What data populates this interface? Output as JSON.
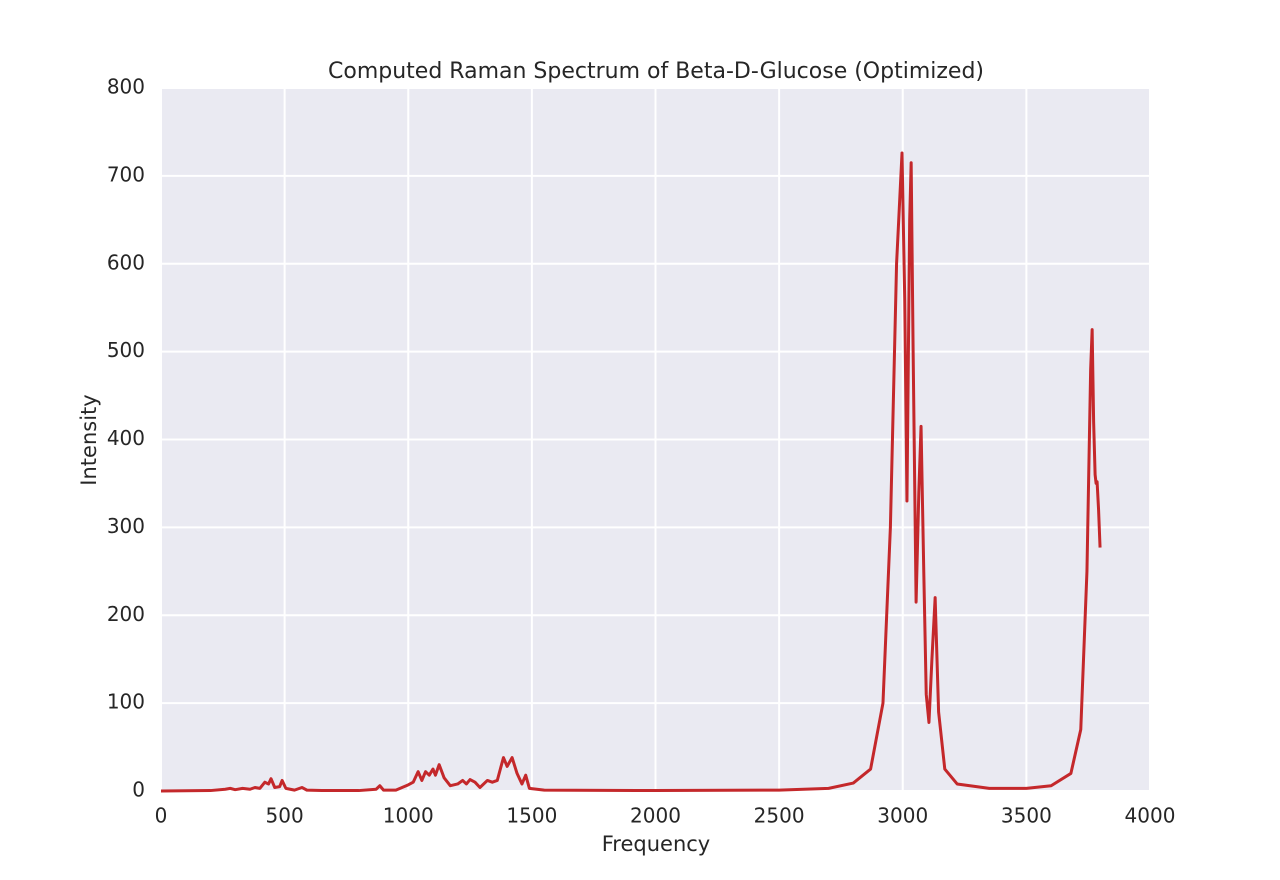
{
  "chart_data": {
    "type": "line",
    "title": "Computed Raman Spectrum of Beta-D-Glucose (Optimized)",
    "xlabel": "Frequency",
    "ylabel": "Intensity",
    "x": [
      0,
      200,
      260,
      280,
      300,
      330,
      360,
      380,
      400,
      420,
      435,
      445,
      460,
      480,
      490,
      505,
      540,
      570,
      590,
      650,
      800,
      870,
      885,
      900,
      950,
      1000,
      1020,
      1040,
      1055,
      1070,
      1085,
      1100,
      1110,
      1125,
      1145,
      1170,
      1200,
      1220,
      1235,
      1250,
      1270,
      1290,
      1320,
      1340,
      1360,
      1385,
      1400,
      1420,
      1440,
      1460,
      1475,
      1490,
      1550,
      2000,
      2500,
      2700,
      2800,
      2870,
      2920,
      2950,
      2975,
      2997,
      3008,
      3017,
      3028,
      3034,
      3042,
      3054,
      3065,
      3074,
      3085,
      3095,
      3106,
      3118,
      3131,
      3145,
      3170,
      3220,
      3350,
      3500,
      3600,
      3680,
      3720,
      3745,
      3760,
      3766,
      3772,
      3778,
      3782,
      3786,
      3792,
      3798
    ],
    "values": [
      0,
      0.5,
      2,
      3,
      1.5,
      3,
      2,
      4,
      3,
      10,
      8,
      14,
      4,
      5,
      12,
      3,
      1,
      4,
      1,
      0.5,
      0.5,
      2,
      6,
      1,
      1,
      7,
      10,
      22,
      12,
      22,
      18,
      25,
      18,
      30,
      15,
      6,
      8,
      12,
      8,
      13,
      10,
      4,
      12,
      10,
      12,
      38,
      28,
      38,
      20,
      8,
      18,
      3,
      1,
      0.5,
      1,
      3,
      9,
      25,
      100,
      300,
      600,
      726,
      560,
      330,
      650,
      715,
      500,
      215,
      340,
      415,
      250,
      110,
      78,
      150,
      220,
      90,
      25,
      8,
      3,
      3,
      6,
      20,
      70,
      250,
      480,
      525,
      420,
      360,
      350,
      352,
      320,
      277
    ],
    "color": "#c4282b",
    "xlim": [
      0,
      4000
    ],
    "xticks": [
      0,
      500,
      1000,
      1500,
      2000,
      2500,
      3000,
      3500,
      4000
    ],
    "ylim": [
      0,
      800
    ],
    "yticks": [
      0,
      100,
      200,
      300,
      400,
      500,
      600,
      700,
      800
    ],
    "grid": true
  }
}
